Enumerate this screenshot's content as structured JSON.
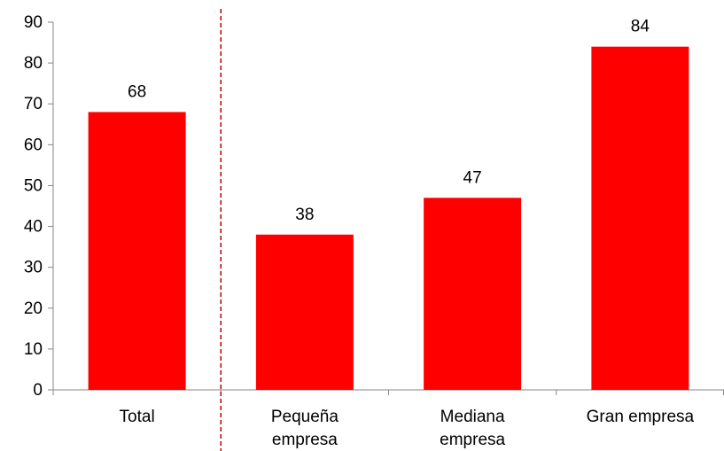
{
  "chart_data": {
    "type": "bar",
    "categories": [
      "Total",
      "Pequeña empresa",
      "Mediana empresa",
      "Gran empresa"
    ],
    "category_lines": [
      [
        "Total"
      ],
      [
        "Pequeña",
        "empresa"
      ],
      [
        "Mediana",
        "empresa"
      ],
      [
        "Gran empresa"
      ]
    ],
    "values": [
      68,
      38,
      47,
      84
    ],
    "data_labels": [
      "68",
      "38",
      "47",
      "84"
    ],
    "y_ticks": [
      "0",
      "10",
      "20",
      "30",
      "40",
      "50",
      "60",
      "70",
      "80",
      "90"
    ],
    "ylim": [
      0,
      90
    ],
    "title": "",
    "xlabel": "",
    "ylabel": "",
    "grid": false,
    "legend": "none",
    "separator_after_category": 0,
    "colors": {
      "bar": "#ff0000",
      "separator": "#c00000",
      "axis": "#868686",
      "text": "#000000"
    }
  }
}
